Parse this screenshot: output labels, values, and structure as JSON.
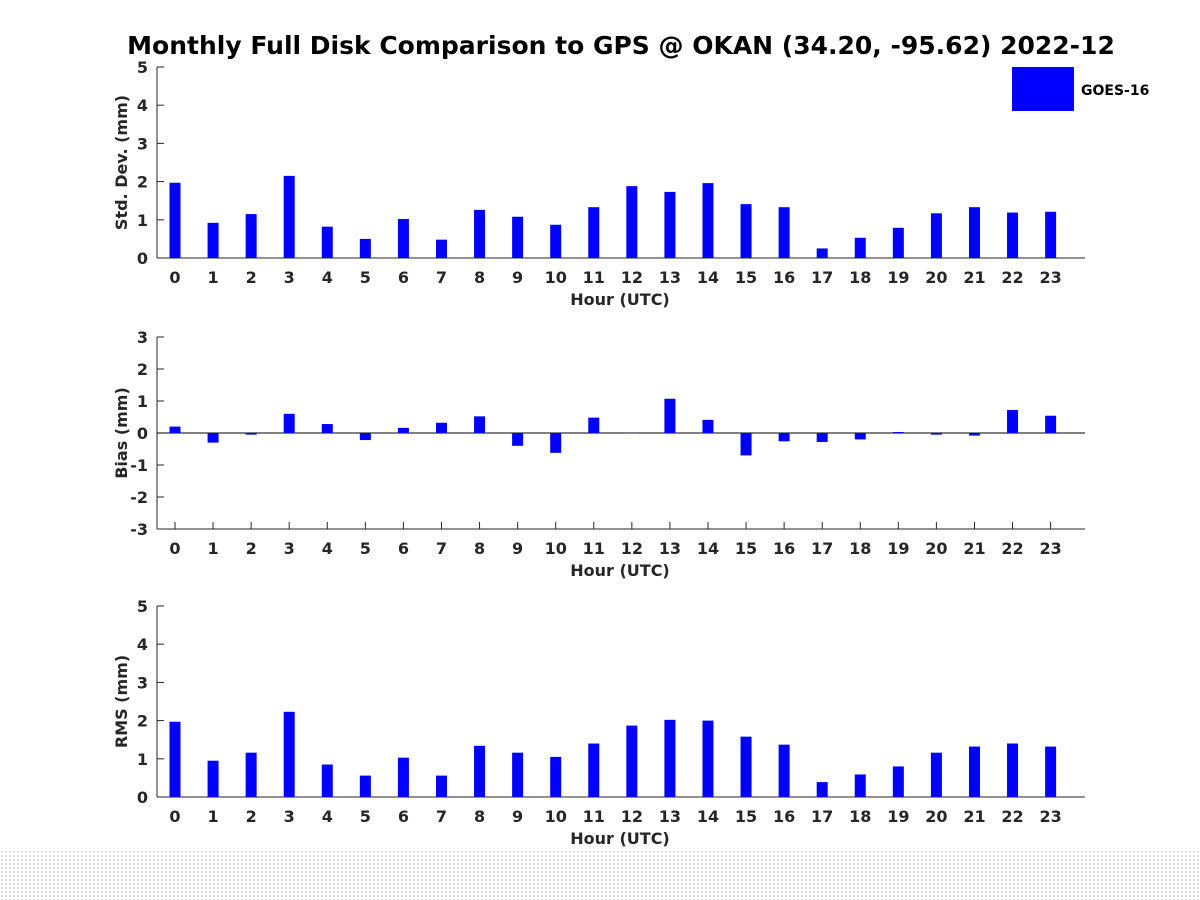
{
  "figure_title": "Monthly Full Disk Comparison to GPS @ OKAN (34.20, -95.62) 2022-12",
  "legend": {
    "label": "GOES-16",
    "color": "#0000ff"
  },
  "colors": {
    "bar": "#0000ff",
    "axis": "#262626"
  },
  "chart_data": [
    {
      "type": "bar",
      "title": "Monthly Full Disk Comparison to GPS @ OKAN (34.20, -95.62) 2022-12",
      "xlabel": "Hour (UTC)",
      "ylabel": "Std. Dev. (mm)",
      "ylim": [
        0,
        5
      ],
      "yticks": [
        0,
        1,
        2,
        3,
        4,
        5
      ],
      "categories": [
        "0",
        "1",
        "2",
        "3",
        "4",
        "5",
        "6",
        "7",
        "8",
        "9",
        "10",
        "11",
        "12",
        "13",
        "14",
        "15",
        "16",
        "17",
        "18",
        "19",
        "20",
        "21",
        "22",
        "23"
      ],
      "series": [
        {
          "name": "GOES-16",
          "values": [
            1.97,
            0.92,
            1.15,
            2.15,
            0.82,
            0.5,
            1.02,
            0.48,
            1.26,
            1.08,
            0.87,
            1.33,
            1.88,
            1.73,
            1.96,
            1.41,
            1.33,
            0.25,
            0.53,
            0.79,
            1.17,
            1.33,
            1.19,
            1.21
          ]
        }
      ]
    },
    {
      "type": "bar",
      "xlabel": "Hour (UTC)",
      "ylabel": "Bias (mm)",
      "ylim": [
        -3,
        3
      ],
      "yticks": [
        -3,
        -2,
        -1,
        0,
        1,
        2,
        3
      ],
      "zero_line": true,
      "categories": [
        "0",
        "1",
        "2",
        "3",
        "4",
        "5",
        "6",
        "7",
        "8",
        "9",
        "10",
        "11",
        "12",
        "13",
        "14",
        "15",
        "16",
        "17",
        "18",
        "19",
        "20",
        "21",
        "22",
        "23"
      ],
      "series": [
        {
          "name": "GOES-16",
          "values": [
            0.2,
            -0.3,
            -0.05,
            0.6,
            0.28,
            -0.22,
            0.16,
            0.32,
            0.52,
            -0.4,
            -0.62,
            0.48,
            0.0,
            1.07,
            0.41,
            -0.7,
            -0.26,
            -0.28,
            -0.2,
            0.03,
            -0.05,
            -0.08,
            0.72,
            0.54
          ]
        }
      ]
    },
    {
      "type": "bar",
      "xlabel": "Hour (UTC)",
      "ylabel": "RMS (mm)",
      "ylim": [
        0,
        5
      ],
      "yticks": [
        0,
        1,
        2,
        3,
        4,
        5
      ],
      "categories": [
        "0",
        "1",
        "2",
        "3",
        "4",
        "5",
        "6",
        "7",
        "8",
        "9",
        "10",
        "11",
        "12",
        "13",
        "14",
        "15",
        "16",
        "17",
        "18",
        "19",
        "20",
        "21",
        "22",
        "23"
      ],
      "series": [
        {
          "name": "GOES-16",
          "values": [
            1.97,
            0.95,
            1.16,
            2.23,
            0.85,
            0.56,
            1.03,
            0.56,
            1.34,
            1.16,
            1.05,
            1.4,
            1.87,
            2.02,
            2.0,
            1.58,
            1.37,
            0.39,
            0.59,
            0.8,
            1.16,
            1.32,
            1.4,
            1.32
          ]
        }
      ]
    }
  ]
}
